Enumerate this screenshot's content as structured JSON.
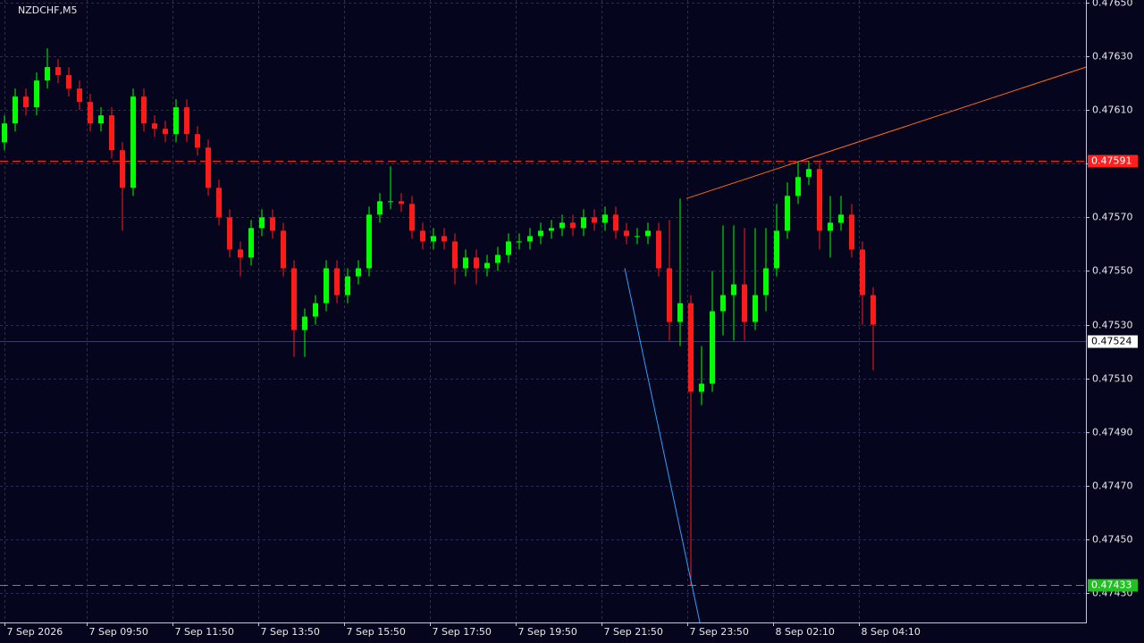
{
  "chart_data": {
    "type": "candlestick",
    "title": "NZDCHF,M5",
    "x": [
      0,
      3,
      6,
      9,
      12,
      15,
      18,
      21,
      24,
      27,
      30,
      33,
      36,
      39,
      42,
      45,
      48,
      51,
      54,
      57,
      60,
      63,
      66,
      69,
      72,
      75,
      78,
      81,
      84,
      87,
      90,
      93,
      96,
      99,
      102,
      105,
      108,
      111,
      114,
      117,
      120,
      123,
      126,
      129,
      132,
      135,
      138,
      141,
      144,
      147,
      150,
      153,
      156,
      159,
      162,
      165,
      168,
      171,
      174,
      177,
      180,
      183,
      186,
      189,
      192,
      195,
      198,
      201,
      204,
      207,
      210,
      213,
      216,
      219,
      222,
      225,
      228,
      231,
      234,
      237,
      240,
      243
    ],
    "open": [
      0.47598,
      0.47605,
      0.47615,
      0.47611,
      0.47621,
      0.47626,
      0.47623,
      0.47618,
      0.47613,
      0.47605,
      0.47608,
      0.47595,
      0.47581,
      0.47615,
      0.47605,
      0.47603,
      0.47601,
      0.47611,
      0.47601,
      0.47596,
      0.47581,
      0.4757,
      0.47558,
      0.47555,
      0.47566,
      0.4757,
      0.47565,
      0.47551,
      0.47528,
      0.47533,
      0.47538,
      0.47551,
      0.47541,
      0.47548,
      0.47551,
      0.47571,
      0.47576,
      0.47576,
      0.47575,
      0.47565,
      0.47561,
      0.47563,
      0.47561,
      0.47551,
      0.47555,
      0.47551,
      0.47553,
      0.47556,
      0.47561,
      0.47561,
      0.47563,
      0.47565,
      0.47566,
      0.47568,
      0.47566,
      0.4757,
      0.47568,
      0.47571,
      0.47565,
      0.47563,
      0.47563,
      0.47565,
      0.47551,
      0.47531,
      0.47538,
      0.47505,
      0.47508,
      0.47535,
      0.47541,
      0.47545,
      0.47531,
      0.47541,
      0.47551,
      0.47565,
      0.47578,
      0.47585,
      0.47588,
      0.47565,
      0.47568,
      0.47571,
      0.47558,
      0.47541
    ],
    "high": [
      0.47608,
      0.47618,
      0.47618,
      0.47624,
      0.47633,
      0.47629,
      0.47626,
      0.47621,
      0.47616,
      0.47611,
      0.47611,
      0.47598,
      0.47618,
      0.47618,
      0.47608,
      0.47606,
      0.47614,
      0.47614,
      0.47604,
      0.47599,
      0.47584,
      0.47573,
      0.47561,
      0.47569,
      0.47573,
      0.47573,
      0.47568,
      0.47554,
      0.47536,
      0.47541,
      0.47554,
      0.47554,
      0.47551,
      0.47554,
      0.47574,
      0.47579,
      0.47589,
      0.47579,
      0.47578,
      0.47568,
      0.47566,
      0.47566,
      0.47564,
      0.47558,
      0.47558,
      0.47556,
      0.47559,
      0.47564,
      0.47564,
      0.47566,
      0.47568,
      0.47569,
      0.47571,
      0.47571,
      0.47573,
      0.47573,
      0.47574,
      0.47574,
      0.47568,
      0.47566,
      0.47568,
      0.47568,
      0.47569,
      0.47577,
      0.47541,
      0.47522,
      0.4755,
      0.47567,
      0.47567,
      0.47566,
      0.47566,
      0.47566,
      0.47575,
      0.47583,
      0.47591,
      0.47591,
      0.47591,
      0.47578,
      0.47578,
      0.47575,
      0.47561,
      0.47544
    ],
    "low": [
      0.47595,
      0.47602,
      0.47608,
      0.47608,
      0.47618,
      0.4762,
      0.47615,
      0.4761,
      0.47602,
      0.47602,
      0.47592,
      0.47565,
      0.47578,
      0.47602,
      0.476,
      0.47598,
      0.47598,
      0.47598,
      0.47593,
      0.47578,
      0.47567,
      0.47555,
      0.47548,
      0.47552,
      0.47563,
      0.47562,
      0.47548,
      0.47518,
      0.47518,
      0.4753,
      0.47535,
      0.47538,
      0.47538,
      0.47545,
      0.47548,
      0.47568,
      0.47573,
      0.47572,
      0.47562,
      0.47558,
      0.47558,
      0.47558,
      0.47545,
      0.47548,
      0.47545,
      0.47548,
      0.4755,
      0.47553,
      0.47558,
      0.47558,
      0.4756,
      0.47562,
      0.47563,
      0.47563,
      0.47563,
      0.47565,
      0.47565,
      0.47562,
      0.4756,
      0.4756,
      0.4756,
      0.47548,
      0.47524,
      0.47522,
      0.47433,
      0.475,
      0.47505,
      0.47526,
      0.47524,
      0.47524,
      0.47528,
      0.47535,
      0.47548,
      0.47562,
      0.47575,
      0.47582,
      0.47558,
      0.47555,
      0.47565,
      0.47555,
      0.4753,
      0.47513
    ],
    "close": [
      0.47605,
      0.47615,
      0.47611,
      0.47621,
      0.47626,
      0.47623,
      0.47618,
      0.47613,
      0.47605,
      0.47608,
      0.47595,
      0.47581,
      0.47615,
      0.47605,
      0.47603,
      0.47601,
      0.47611,
      0.47601,
      0.47596,
      0.47581,
      0.4757,
      0.47558,
      0.47555,
      0.47566,
      0.4757,
      0.47565,
      0.47551,
      0.47528,
      0.47533,
      0.47538,
      0.47551,
      0.47541,
      0.47548,
      0.47551,
      0.47571,
      0.47576,
      0.47576,
      0.47575,
      0.47565,
      0.47561,
      0.47563,
      0.47561,
      0.47551,
      0.47555,
      0.47551,
      0.47553,
      0.47556,
      0.47561,
      0.47561,
      0.47563,
      0.47565,
      0.47566,
      0.47568,
      0.47566,
      0.4757,
      0.47568,
      0.47571,
      0.47565,
      0.47563,
      0.47563,
      0.47565,
      0.47551,
      0.47531,
      0.47538,
      0.47505,
      0.47508,
      0.47535,
      0.47541,
      0.47545,
      0.47531,
      0.47541,
      0.47551,
      0.47565,
      0.47578,
      0.47585,
      0.47588,
      0.47565,
      0.47568,
      0.47571,
      0.47558,
      0.47541,
      0.4753
    ],
    "up_color": "#00ff00",
    "down_color": "#ff1a1a",
    "xlim": [
      -1.25,
      302.5
    ],
    "xticks": [
      {
        "value": 0,
        "label": "7 Sep 2026"
      },
      {
        "value": 23,
        "label": "7 Sep 09:50"
      },
      {
        "value": 47,
        "label": "7 Sep 11:50"
      },
      {
        "value": 71,
        "label": "7 Sep 13:50"
      },
      {
        "value": 95,
        "label": "7 Sep 15:50"
      },
      {
        "value": 119,
        "label": "7 Sep 17:50"
      },
      {
        "value": 143,
        "label": "7 Sep 19:50"
      },
      {
        "value": 167,
        "label": "7 Sep 21:50"
      },
      {
        "value": 191,
        "label": "7 Sep 23:50"
      },
      {
        "value": 215,
        "label": "8 Sep 02:10"
      },
      {
        "value": 239,
        "label": "8 Sep 04:10"
      }
    ],
    "ylim": [
      0.47419,
      0.47651
    ],
    "yticks": [
      {
        "value": 0.4765,
        "label": "0.47650"
      },
      {
        "value": 0.4763,
        "label": "0.47630"
      },
      {
        "value": 0.4761,
        "label": "0.47610"
      },
      {
        "value": 0.4759,
        "label": "0.47590"
      },
      {
        "value": 0.4757,
        "label": "0.47570"
      },
      {
        "value": 0.4755,
        "label": "0.47550"
      },
      {
        "value": 0.4753,
        "label": "0.47530"
      },
      {
        "value": 0.4751,
        "label": "0.47510"
      },
      {
        "value": 0.4749,
        "label": "0.47490"
      },
      {
        "value": 0.4747,
        "label": "0.47470"
      },
      {
        "value": 0.4745,
        "label": "0.47450"
      },
      {
        "value": 0.4743,
        "label": "0.47430"
      }
    ],
    "grid": true,
    "levels": [
      {
        "value": 0.47591,
        "color": "#ff2020",
        "style": "dashed"
      },
      {
        "value": 0.47524,
        "color": "#3a3d66",
        "style": "solid"
      },
      {
        "value": 0.47433,
        "color": "#20c020",
        "style": "dashed"
      }
    ],
    "trendlines": [
      {
        "x": [
          190.75,
          302.5
        ],
        "y": [
          0.47577,
          0.47626
        ],
        "color": "#ff6a10"
      },
      {
        "x": [
          173.5,
          194.5
        ],
        "y": [
          0.47551,
          0.47419
        ],
        "color": "#2aa0ff"
      }
    ]
  }
}
